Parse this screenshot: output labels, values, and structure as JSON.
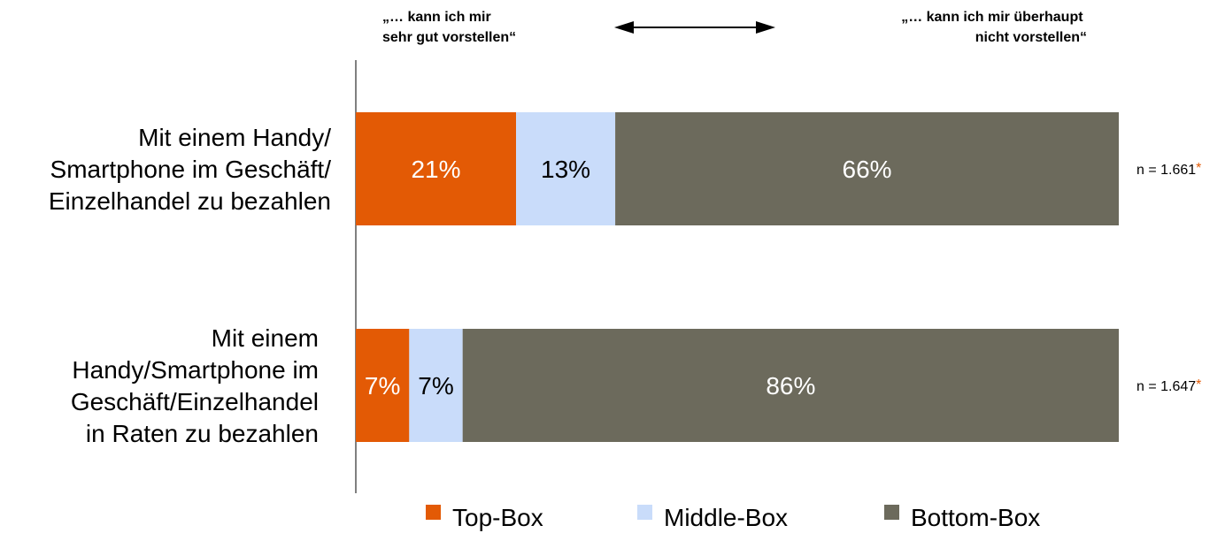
{
  "chart_data": {
    "type": "bar",
    "orientation": "horizontal",
    "stacked": true,
    "categories": [
      [
        "Mit einem Handy/",
        "Smartphone im Geschäft/",
        "Einzelhandel zu bezahlen"
      ],
      [
        "Mit einem",
        "Handy/Smartphone im",
        "Geschäft/Einzelhandel",
        "in Raten zu bezahlen"
      ]
    ],
    "series": [
      {
        "name": "Top-Box",
        "values": [
          21,
          7
        ],
        "labels": [
          "21%",
          "7%"
        ],
        "color": "#E35A05",
        "label_color": "#ffffff"
      },
      {
        "name": "Middle-Box",
        "values": [
          13,
          7
        ],
        "labels": [
          "13%",
          "7%"
        ],
        "color": "#C9DCFA",
        "label_color": "#000000"
      },
      {
        "name": "Bottom-Box",
        "values": [
          66,
          86
        ],
        "labels": [
          "66%",
          "86%"
        ],
        "color": "#6C6A5C",
        "label_color": "#ffffff"
      }
    ],
    "sample_sizes": [
      "n = 1.661",
      "n = 1.647"
    ],
    "sample_marker": "*",
    "sample_marker_color": "#E35A05",
    "scale_left_label": [
      "„… kann ich mir",
      "sehr gut vorstellen“"
    ],
    "scale_right_label": [
      "„… kann ich mir überhaupt",
      "nicht vorstellen“"
    ],
    "scale_arrow": "double-arrow",
    "xlim": [
      0,
      100
    ],
    "grid": false,
    "legend_position": "bottom"
  }
}
